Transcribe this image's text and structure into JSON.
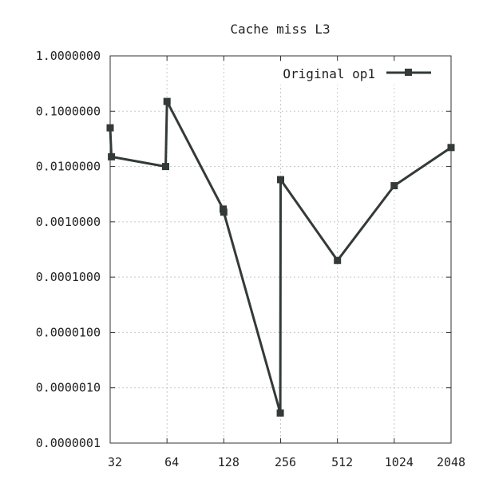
{
  "chart_data": {
    "type": "line",
    "title": "Cache miss L3",
    "xlabel": "",
    "ylabel": "",
    "x_scale": "log2",
    "y_scale": "log10",
    "xlim": [
      32,
      2048
    ],
    "ylim": [
      1e-07,
      1.0
    ],
    "grid": true,
    "legend_position": "top-right",
    "x_ticks": [
      {
        "value": 32,
        "label": "32"
      },
      {
        "value": 64,
        "label": "64"
      },
      {
        "value": 128,
        "label": "128"
      },
      {
        "value": 256,
        "label": "256"
      },
      {
        "value": 512,
        "label": "512"
      },
      {
        "value": 1024,
        "label": "1024"
      },
      {
        "value": 2048,
        "label": "2048"
      }
    ],
    "y_ticks": [
      {
        "value": 1.0,
        "label": "1.0000000"
      },
      {
        "value": 0.1,
        "label": "0.1000000"
      },
      {
        "value": 0.01,
        "label": "0.0100000"
      },
      {
        "value": 0.001,
        "label": "0.0010000"
      },
      {
        "value": 0.0001,
        "label": "0.0001000"
      },
      {
        "value": 1e-05,
        "label": "0.0000100"
      },
      {
        "value": 1e-06,
        "label": "0.0000010"
      },
      {
        "value": 1e-07,
        "label": "0.0000001"
      }
    ],
    "series": [
      {
        "name": "Original op1",
        "color": "#333a38",
        "marker": "square",
        "points": [
          {
            "x": 32,
            "y": 0.05
          },
          {
            "x": 32.5,
            "y": 0.015
          },
          {
            "x": 63,
            "y": 0.01
          },
          {
            "x": 64,
            "y": 0.15
          },
          {
            "x": 127,
            "y": 0.0017
          },
          {
            "x": 128,
            "y": 0.0015
          },
          {
            "x": 255,
            "y": 3.5e-07
          },
          {
            "x": 256,
            "y": 0.0058
          },
          {
            "x": 512,
            "y": 0.0002
          },
          {
            "x": 1024,
            "y": 0.0045
          },
          {
            "x": 2048,
            "y": 0.022
          }
        ]
      }
    ]
  }
}
